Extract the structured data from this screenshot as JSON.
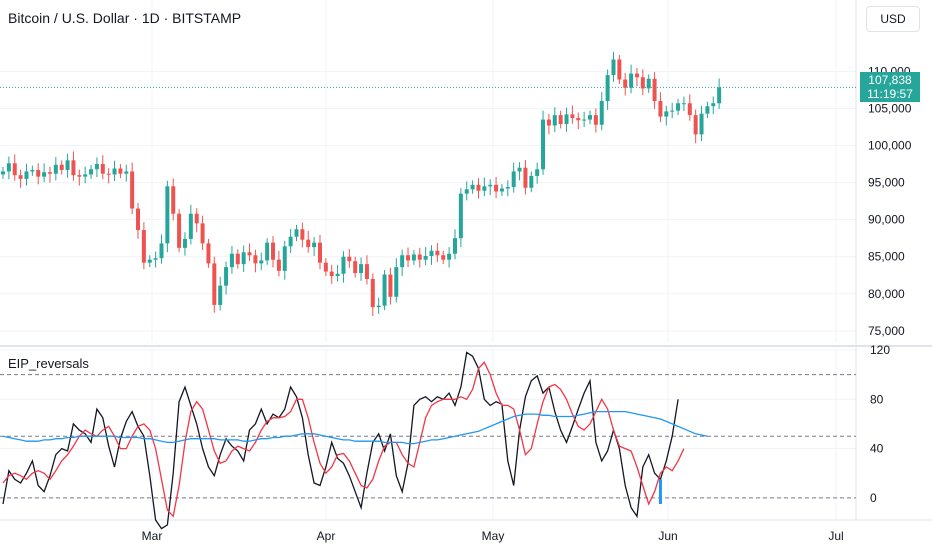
{
  "header": {
    "title": "Bitcoin / U.S. Dollar · 1D · BITSTAMP",
    "currency_button": "USD"
  },
  "price_tag": {
    "price": "107,838",
    "countdown": "11:19:57"
  },
  "indicator": {
    "name": "EIP_reversals"
  },
  "colors": {
    "up": "#26a69a",
    "down": "#ef5350",
    "osc_black": "#131722",
    "osc_red": "#f23645",
    "osc_blue": "#2196f3",
    "grid": "#f0f3fa",
    "last_price_line": "#26a69a"
  },
  "chart_data": [
    {
      "type": "candlestick",
      "y_axis_labels": [
        "110,000",
        "105,000",
        "100,000",
        "95,000",
        "90,000",
        "85,000",
        "80,000",
        "75,000"
      ],
      "ylim": [
        73500,
        114500
      ],
      "x_axis_labels": [
        "Mar",
        "Apr",
        "May",
        "Jun",
        "Jul"
      ],
      "last_price": 107838,
      "closes": [
        96500,
        97600,
        96000,
        95500,
        96500,
        96700,
        95800,
        96400,
        96200,
        97400,
        96700,
        98000,
        96000,
        95800,
        96100,
        96800,
        97500,
        96200,
        96100,
        96900,
        96200,
        96500,
        91500,
        88600,
        84200,
        84600,
        84800,
        86800,
        94500,
        90800,
        86200,
        87400,
        90800,
        89500,
        86800,
        84100,
        78500,
        81100,
        83600,
        85400,
        84000,
        85600,
        85200,
        84100,
        84500,
        86900,
        84600,
        83100,
        86400,
        87700,
        88700,
        87300,
        86300,
        86900,
        84200,
        83000,
        82400,
        82700,
        85000,
        84400,
        82800,
        84000,
        82000,
        78200,
        78400,
        82600,
        79600,
        83600,
        85200,
        84500,
        85300,
        84600,
        85100,
        85800,
        85200,
        84600,
        85400,
        87500,
        93500,
        94100,
        94700,
        93900,
        94500,
        94700,
        93800,
        94200,
        94400,
        96500,
        97000,
        94300,
        95900,
        96800,
        103500,
        102700,
        104100,
        102900,
        104200,
        103700,
        103400,
        103500,
        104100,
        102800,
        106000,
        109500,
        111600,
        108900,
        107800,
        109700,
        109200,
        107700,
        109000,
        106000,
        103900,
        104600,
        104700,
        105700,
        105700,
        104100,
        101500,
        104300,
        105300,
        105700,
        107838
      ]
    },
    {
      "type": "line",
      "title": "EIP_reversals",
      "y_axis_labels": [
        "120",
        "80",
        "40",
        "0"
      ],
      "ylim": [
        -18,
        120
      ],
      "dashed_levels": [
        100,
        50,
        0
      ],
      "series": [
        {
          "color": "#131722",
          "values": [
            -5,
            22,
            15,
            12,
            20,
            30,
            10,
            5,
            18,
            35,
            40,
            38,
            60,
            55,
            52,
            45,
            72,
            65,
            42,
            25,
            48,
            62,
            70,
            58,
            50,
            18,
            -18,
            -25,
            -22,
            20,
            78,
            90,
            75,
            60,
            40,
            25,
            18,
            35,
            48,
            42,
            38,
            30,
            55,
            60,
            72,
            60,
            68,
            65,
            72,
            90,
            82,
            65,
            35,
            12,
            10,
            25,
            45,
            32,
            28,
            18,
            5,
            -8,
            20,
            45,
            52,
            38,
            52,
            18,
            5,
            28,
            75,
            80,
            82,
            78,
            82,
            80,
            85,
            75,
            90,
            118,
            115,
            105,
            80,
            75,
            78,
            76,
            30,
            10,
            55,
            82,
            95,
            99,
            85,
            90,
            70,
            55,
            45,
            58,
            72,
            85,
            95,
            45,
            30,
            38,
            55,
            40,
            10,
            -8,
            -15,
            25,
            35,
            20,
            15,
            30,
            50,
            80
          ]
        },
        {
          "color": "#f23645",
          "values": [
            12,
            18,
            20,
            18,
            15,
            20,
            22,
            20,
            15,
            22,
            30,
            35,
            42,
            50,
            55,
            52,
            50,
            55,
            58,
            50,
            40,
            40,
            50,
            58,
            60,
            55,
            40,
            15,
            -10,
            -15,
            10,
            45,
            70,
            78,
            72,
            55,
            38,
            28,
            30,
            38,
            42,
            40,
            38,
            45,
            55,
            62,
            65,
            65,
            66,
            70,
            80,
            80,
            65,
            45,
            28,
            20,
            25,
            35,
            36,
            30,
            20,
            10,
            8,
            15,
            30,
            42,
            45,
            45,
            35,
            28,
            25,
            45,
            65,
            75,
            78,
            80,
            80,
            80,
            82,
            80,
            88,
            105,
            110,
            100,
            85,
            75,
            75,
            72,
            55,
            35,
            40,
            60,
            78,
            90,
            92,
            88,
            80,
            68,
            58,
            55,
            60,
            70,
            80,
            72,
            55,
            42,
            40,
            38,
            25,
            10,
            -5,
            5,
            20,
            25,
            22,
            30,
            40
          ]
        },
        {
          "color": "#2196f3",
          "values": [
            50,
            49,
            48,
            47,
            46,
            46,
            46,
            47,
            47,
            48,
            48,
            49,
            49,
            50,
            50,
            50,
            50,
            50,
            50,
            50,
            49,
            49,
            49,
            49,
            48,
            48,
            47,
            46,
            45,
            45,
            46,
            47,
            48,
            48,
            48,
            48,
            48,
            47,
            47,
            47,
            47,
            46,
            46,
            47,
            48,
            48,
            49,
            49,
            50,
            50,
            51,
            52,
            52,
            52,
            51,
            50,
            49,
            48,
            47,
            47,
            46,
            46,
            46,
            46,
            46,
            45,
            45,
            45,
            45,
            44,
            44,
            45,
            46,
            47,
            47,
            48,
            49,
            50,
            51,
            52,
            53,
            54,
            56,
            58,
            60,
            62,
            64,
            66,
            67,
            68,
            68,
            68,
            67,
            67,
            66,
            66,
            66,
            66,
            67,
            68,
            69,
            70,
            70,
            70,
            70,
            70,
            70,
            69,
            68,
            67,
            66,
            65,
            64,
            62,
            60,
            58,
            56,
            54,
            52,
            51,
            50
          ]
        }
      ]
    }
  ]
}
